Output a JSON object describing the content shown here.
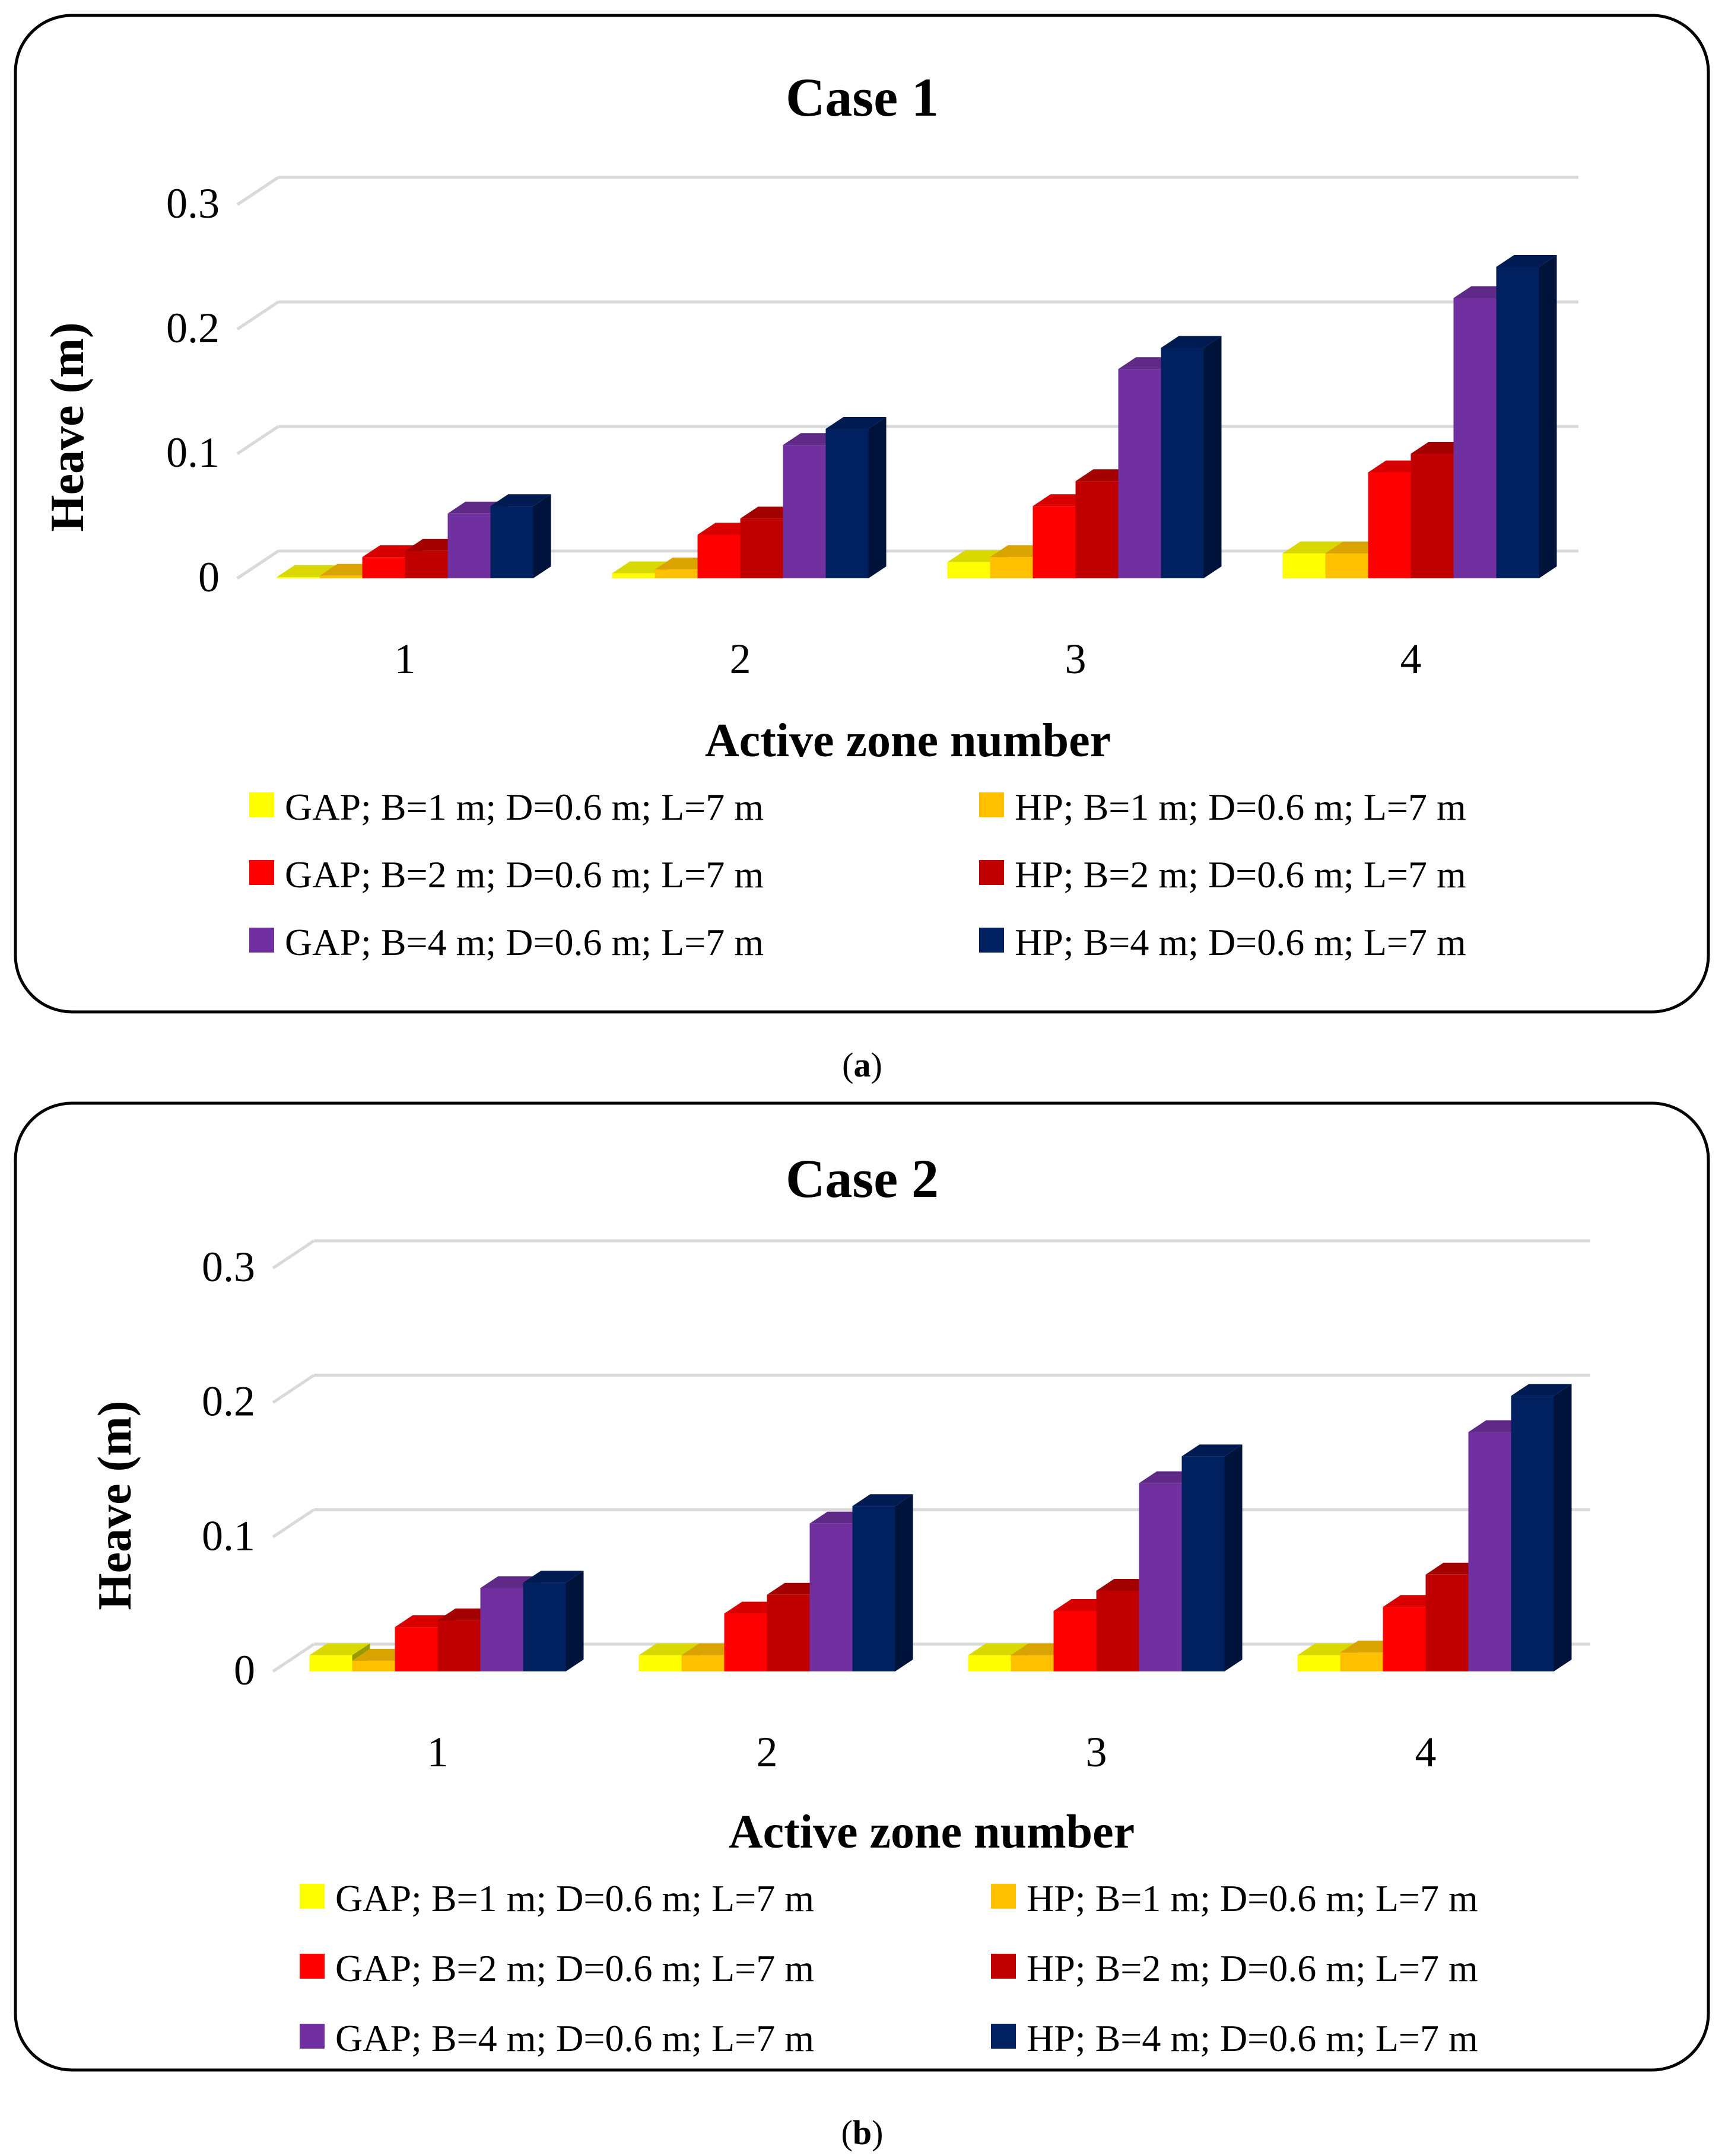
{
  "chart_data": [
    {
      "type": "bar",
      "panel_label": "a",
      "title": "Case 1",
      "xlabel": "Active zone number",
      "ylabel": "Heave (m)",
      "ylim": [
        0,
        0.3
      ],
      "yticks": [
        "0",
        "0.1",
        "0.2",
        "0.3"
      ],
      "categories": [
        "1",
        "2",
        "3",
        "4"
      ],
      "grid": true,
      "legend_position": "bottom",
      "series": [
        {
          "name": "GAP; B=1 m; D=0.6 m; L=7 m",
          "color": "#FFFF00",
          "values": [
            0.001,
            0.004,
            0.013,
            0.02
          ]
        },
        {
          "name": "HP; B=1 m; D=0.6 m; L=7 m",
          "color": "#FFC000",
          "values": [
            0.002,
            0.007,
            0.017,
            0.02
          ]
        },
        {
          "name": "GAP; B=2 m; D=0.6 m; L=7 m",
          "color": "#FF0000",
          "values": [
            0.017,
            0.035,
            0.058,
            0.085
          ]
        },
        {
          "name": "HP; B=2 m; D=0.6 m; L=7 m",
          "color": "#C00000",
          "values": [
            0.022,
            0.048,
            0.078,
            0.1
          ]
        },
        {
          "name": "GAP; B=4 m; D=0.6 m; L=7 m",
          "color": "#7030A0",
          "values": [
            0.052,
            0.107,
            0.168,
            0.225
          ]
        },
        {
          "name": "HP; B=4 m; D=0.6 m; L=7 m",
          "color": "#002060",
          "values": [
            0.058,
            0.12,
            0.185,
            0.25
          ]
        }
      ]
    },
    {
      "type": "bar",
      "panel_label": "b",
      "title": "Case 2",
      "xlabel": "Active zone number",
      "ylabel": "Heave (m)",
      "ylim": [
        0,
        0.3
      ],
      "yticks": [
        "0",
        "0.1",
        "0.2",
        "0.3"
      ],
      "categories": [
        "1",
        "2",
        "3",
        "4"
      ],
      "grid": true,
      "legend_position": "bottom",
      "series": [
        {
          "name": "GAP; B=1 m; D=0.6 m; L=7 m",
          "color": "#FFFF00",
          "values": [
            0.012,
            0.012,
            0.012,
            0.012
          ]
        },
        {
          "name": "HP; B=1 m; D=0.6 m; L=7 m",
          "color": "#FFC000",
          "values": [
            0.008,
            0.012,
            0.012,
            0.014
          ]
        },
        {
          "name": "GAP; B=2 m; D=0.6 m; L=7 m",
          "color": "#FF0000",
          "values": [
            0.033,
            0.043,
            0.045,
            0.048
          ]
        },
        {
          "name": "HP; B=2 m; D=0.6 m; L=7 m",
          "color": "#C00000",
          "values": [
            0.038,
            0.057,
            0.06,
            0.072
          ]
        },
        {
          "name": "GAP; B=4 m; D=0.6 m; L=7 m",
          "color": "#7030A0",
          "values": [
            0.062,
            0.11,
            0.14,
            0.178
          ]
        },
        {
          "name": "HP; B=4 m; D=0.6 m; L=7 m",
          "color": "#002060",
          "values": [
            0.066,
            0.123,
            0.16,
            0.205
          ]
        }
      ]
    }
  ]
}
